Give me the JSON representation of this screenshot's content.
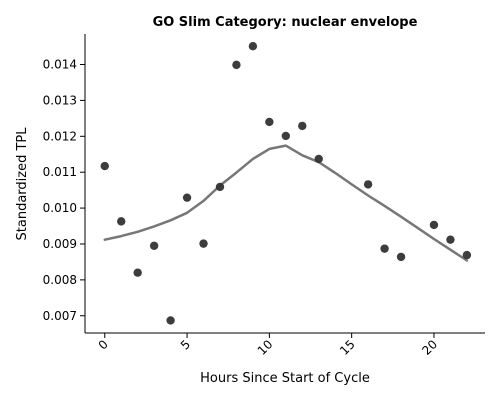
{
  "chart_data": {
    "type": "scatter",
    "title": "GO Slim Category: nuclear envelope",
    "xlabel": "Hours Since Start of Cycle",
    "ylabel": "Standardized TPL",
    "xlim": [
      -1.2,
      23.1
    ],
    "ylim": [
      0.00652,
      0.01485
    ],
    "xticks": [
      0,
      5,
      10,
      15,
      20
    ],
    "xtick_labels": [
      "0",
      "5",
      "10",
      "15",
      "20"
    ],
    "yticks": [
      0.007,
      0.008,
      0.009,
      0.01,
      0.011,
      0.012,
      0.013,
      0.014
    ],
    "ytick_labels": [
      "0.007",
      "0.008",
      "0.009",
      "0.010",
      "0.011",
      "0.012",
      "0.013",
      "0.014"
    ],
    "grid": false,
    "legend": "none",
    "series": [
      {
        "kind": "points",
        "color": "#333333",
        "x": [
          0,
          1,
          2,
          3,
          4,
          5,
          6,
          7,
          8,
          9,
          10,
          11,
          12,
          13,
          16,
          17,
          18,
          20,
          21,
          22
        ],
        "y": [
          0.01117,
          0.00963,
          0.0082,
          0.00895,
          0.00687,
          0.01029,
          0.00901,
          0.01059,
          0.01399,
          0.01451,
          0.0124,
          0.01201,
          0.01229,
          0.01137,
          0.01066,
          0.00887,
          0.00864,
          0.00953,
          0.00912,
          0.00869
        ]
      },
      {
        "kind": "smooth-line",
        "color": "#777777",
        "x": [
          0,
          1,
          2,
          3,
          4,
          5,
          6,
          7,
          8,
          9,
          10,
          11,
          12,
          13,
          14,
          15,
          16,
          17,
          18,
          19,
          20,
          21,
          22
        ],
        "y": [
          0.00912,
          0.00922,
          0.00934,
          0.00949,
          0.00966,
          0.00987,
          0.0102,
          0.01063,
          0.01099,
          0.01137,
          0.01165,
          0.01174,
          0.01147,
          0.01128,
          0.01098,
          0.01066,
          0.01035,
          0.01006,
          0.00976,
          0.00945,
          0.00914,
          0.00884,
          0.00854
        ]
      }
    ]
  }
}
